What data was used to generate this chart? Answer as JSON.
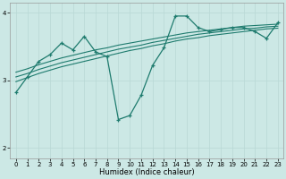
{
  "xlabel": "Humidex (Indice chaleur)",
  "bg_color": "#cce8e5",
  "line_color": "#1e7b6e",
  "grid_color": "#b8d8d5",
  "xlim": [
    -0.5,
    23.5
  ],
  "ylim": [
    1.85,
    4.15
  ],
  "yticks": [
    2,
    3,
    4
  ],
  "xticks": [
    0,
    1,
    2,
    3,
    4,
    5,
    6,
    7,
    8,
    9,
    10,
    11,
    12,
    13,
    14,
    15,
    16,
    17,
    18,
    19,
    20,
    21,
    22,
    23
  ],
  "main_x": [
    0,
    1,
    2,
    3,
    4,
    5,
    6,
    7,
    8,
    9,
    10,
    11,
    12,
    13,
    14,
    15,
    16,
    17,
    18,
    19,
    20,
    21,
    22,
    23
  ],
  "main_y": [
    2.82,
    3.05,
    3.28,
    3.38,
    3.55,
    3.45,
    3.65,
    3.42,
    3.35,
    2.42,
    2.48,
    2.78,
    3.22,
    3.48,
    3.95,
    3.95,
    3.78,
    3.72,
    3.75,
    3.78,
    3.78,
    3.72,
    3.62,
    3.85
  ],
  "smooth1_x": [
    0,
    1,
    2,
    3,
    4,
    5,
    6,
    7,
    8,
    9,
    10,
    11,
    12,
    13,
    14,
    15,
    16,
    17,
    18,
    19,
    20,
    21,
    22,
    23
  ],
  "smooth1_y": [
    3.12,
    3.17,
    3.23,
    3.28,
    3.33,
    3.37,
    3.41,
    3.45,
    3.48,
    3.52,
    3.55,
    3.58,
    3.61,
    3.64,
    3.67,
    3.7,
    3.72,
    3.74,
    3.76,
    3.78,
    3.8,
    3.81,
    3.82,
    3.83
  ],
  "smooth2_x": [
    0,
    1,
    2,
    3,
    4,
    5,
    6,
    7,
    8,
    9,
    10,
    11,
    12,
    13,
    14,
    15,
    16,
    17,
    18,
    19,
    20,
    21,
    22,
    23
  ],
  "smooth2_y": [
    3.05,
    3.1,
    3.16,
    3.21,
    3.26,
    3.3,
    3.34,
    3.38,
    3.42,
    3.46,
    3.49,
    3.52,
    3.56,
    3.59,
    3.62,
    3.65,
    3.68,
    3.7,
    3.72,
    3.74,
    3.76,
    3.77,
    3.79,
    3.8
  ],
  "smooth3_x": [
    0,
    1,
    2,
    3,
    4,
    5,
    6,
    7,
    8,
    9,
    10,
    11,
    12,
    13,
    14,
    15,
    16,
    17,
    18,
    19,
    20,
    21,
    22,
    23
  ],
  "smooth3_y": [
    2.98,
    3.04,
    3.1,
    3.15,
    3.2,
    3.24,
    3.28,
    3.32,
    3.36,
    3.4,
    3.44,
    3.47,
    3.51,
    3.54,
    3.58,
    3.61,
    3.63,
    3.66,
    3.68,
    3.7,
    3.72,
    3.74,
    3.76,
    3.77
  ]
}
